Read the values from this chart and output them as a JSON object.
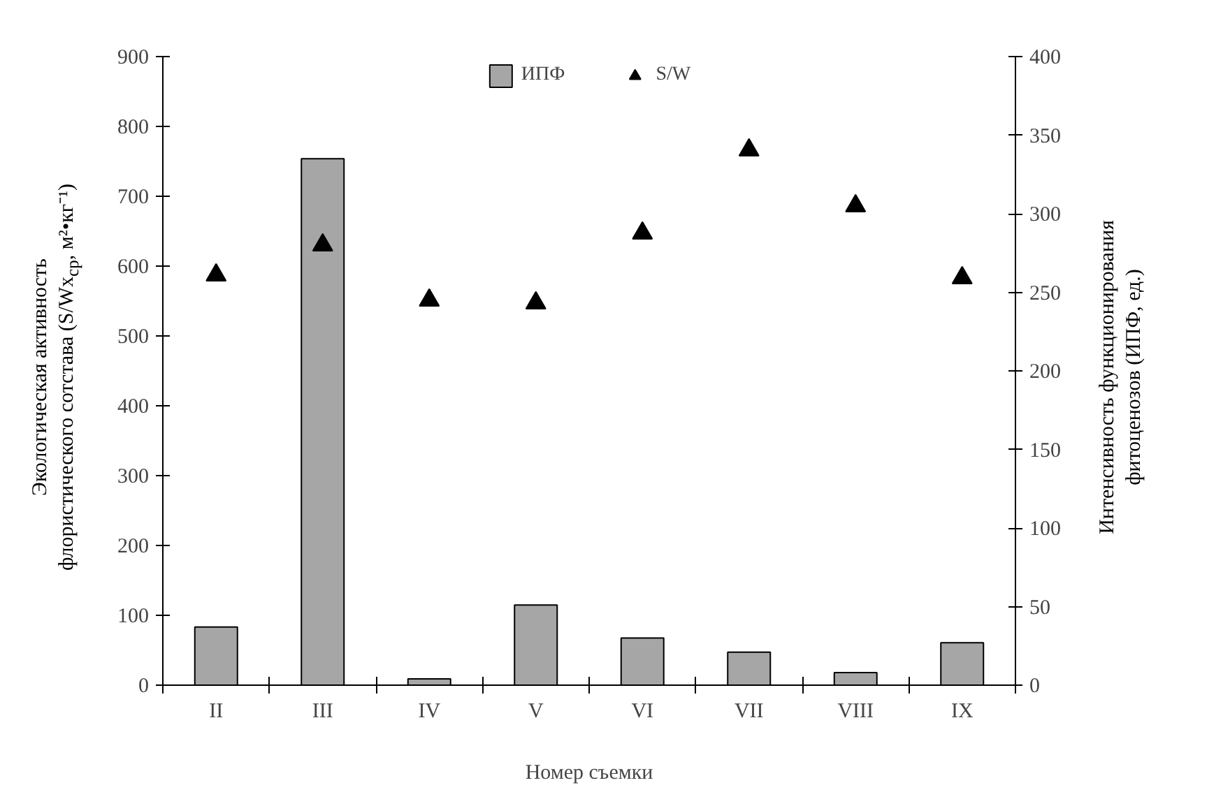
{
  "chart_data": {
    "type": "bar",
    "xlabel": "Номер съемки",
    "ylabel": "Экологическая активность\nфлористического сотстава (S/Wx$_{ср}$, м²•кг⁻¹)",
    "y2label": "Интенсивность функционирования\nфитоценозов (ИПФ, ед.)",
    "categories": [
      "II",
      "III",
      "IV",
      "V",
      "VI",
      "VII",
      "VIII",
      "IX"
    ],
    "series": [
      {
        "name": "ИПФ",
        "axis": "y2",
        "color": "#a6a6a6",
        "values": [
          37,
          335,
          4,
          51,
          30,
          21,
          8,
          27
        ]
      },
      {
        "name": "S/W",
        "type": "scatter",
        "marker": "triangle",
        "color": "#000000",
        "values": [
          587,
          630,
          551,
          547,
          647,
          766,
          686,
          583
        ]
      }
    ],
    "ylim": [
      0,
      900
    ],
    "yticks": [
      0,
      100,
      200,
      300,
      400,
      500,
      600,
      700,
      800,
      900
    ],
    "y2lim": [
      0,
      400
    ],
    "y2ticks": [
      0,
      50,
      100,
      150,
      200,
      250,
      300,
      350,
      400
    ],
    "grid": false,
    "legend": "top"
  }
}
